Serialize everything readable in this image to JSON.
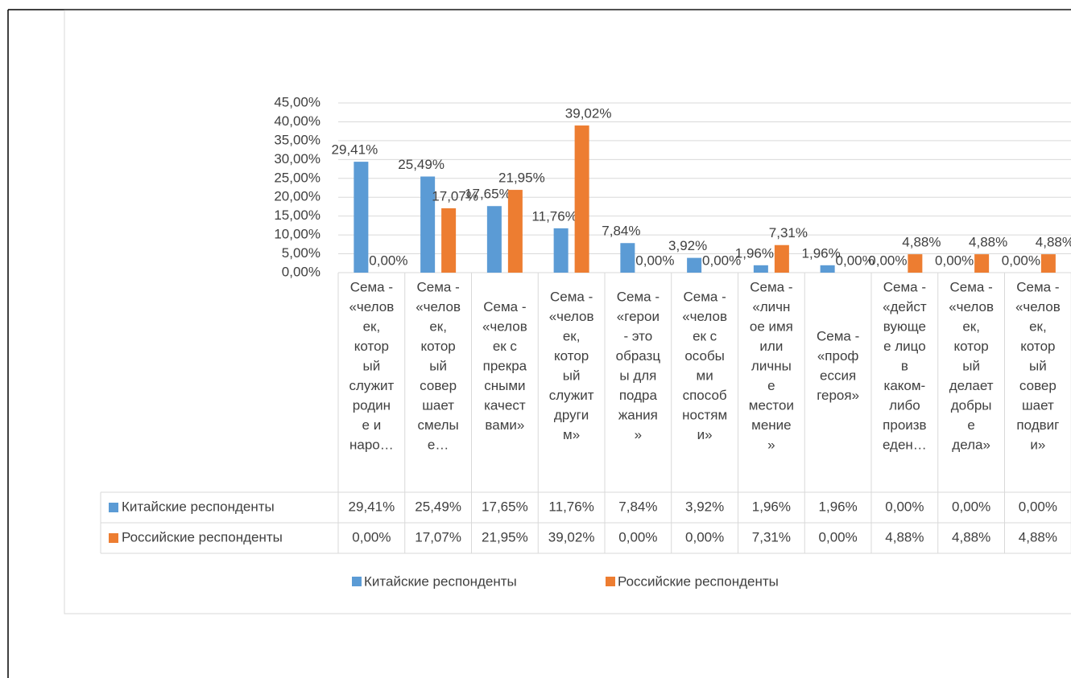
{
  "chart_data": {
    "type": "bar",
    "categories": [
      [
        "Сема -",
        "«челов",
        "ек,",
        "котор",
        "ый",
        "служит",
        "родин",
        "е и",
        "наро…"
      ],
      [
        "Сема -",
        "«челов",
        "ек,",
        "котор",
        "ый",
        "совер",
        "шает",
        "смелы",
        "е…"
      ],
      [
        "Сема -",
        "«челов",
        "ек с",
        "прекра",
        "сными",
        "качест",
        "вами»"
      ],
      [
        "Сема -",
        "«челов",
        "ек,",
        "котор",
        "ый",
        "служит",
        "други",
        "м»"
      ],
      [
        "Сема -",
        "«герои",
        "- это",
        "образц",
        "ы для",
        "подра",
        "жания",
        "»"
      ],
      [
        "Сема -",
        "«челов",
        "ек с",
        "особы",
        "ми",
        "способ",
        "ностям",
        "и»"
      ],
      [
        "Сема -",
        "«личн",
        "ое имя",
        "или",
        "личны",
        "е",
        "местои",
        "мение",
        "»"
      ],
      [
        "Сема -",
        "«проф",
        "ессия",
        "героя»"
      ],
      [
        "Сема -",
        "«дейст",
        "вующе",
        "е лицо",
        "в",
        "каком-",
        "либо",
        "произв",
        "еден…"
      ],
      [
        "Сема -",
        "«челов",
        "ек,",
        "котор",
        "ый",
        "делает",
        "добры",
        "е",
        "дела»"
      ],
      [
        "Сема -",
        "«челов",
        "ек,",
        "котор",
        "ый",
        "совер",
        "шает",
        "подвиг",
        "и»"
      ]
    ],
    "series": [
      {
        "name": "Китайские респонденты",
        "color": "#5b9bd5",
        "values": [
          29.41,
          25.49,
          17.65,
          11.76,
          7.84,
          3.92,
          1.96,
          1.96,
          0,
          0,
          0
        ],
        "value_labels": [
          "29,41%",
          "25,49%",
          "17,65%",
          "11,76%",
          "7,84%",
          "3,92%",
          "1,96%",
          "1,96%",
          "0,00%",
          "0,00%",
          "0,00%"
        ]
      },
      {
        "name": "Российские респонденты",
        "color": "#ed7d31",
        "values": [
          0,
          17.07,
          21.95,
          39.02,
          0,
          0,
          7.31,
          0,
          4.88,
          4.88,
          4.88
        ],
        "value_labels": [
          "0,00%",
          "17,07%",
          "21,95%",
          "39,02%",
          "0,00%",
          "0,00%",
          "7,31%",
          "0,00%",
          "4,88%",
          "4,88%",
          "4,88%"
        ]
      }
    ],
    "ylim": [
      0,
      45
    ],
    "yticks": [
      {
        "value": 0,
        "label": "0,00%"
      },
      {
        "value": 5,
        "label": "5,00%"
      },
      {
        "value": 10,
        "label": "10,00%"
      },
      {
        "value": 15,
        "label": "15,00%"
      },
      {
        "value": 20,
        "label": "20,00%"
      },
      {
        "value": 25,
        "label": "25,00%"
      },
      {
        "value": 30,
        "label": "30,00%"
      },
      {
        "value": 35,
        "label": "35,00%"
      },
      {
        "value": 40,
        "label": "40,00%"
      },
      {
        "value": 45,
        "label": "45,00%"
      }
    ],
    "grid": true,
    "legend": "bottom"
  }
}
